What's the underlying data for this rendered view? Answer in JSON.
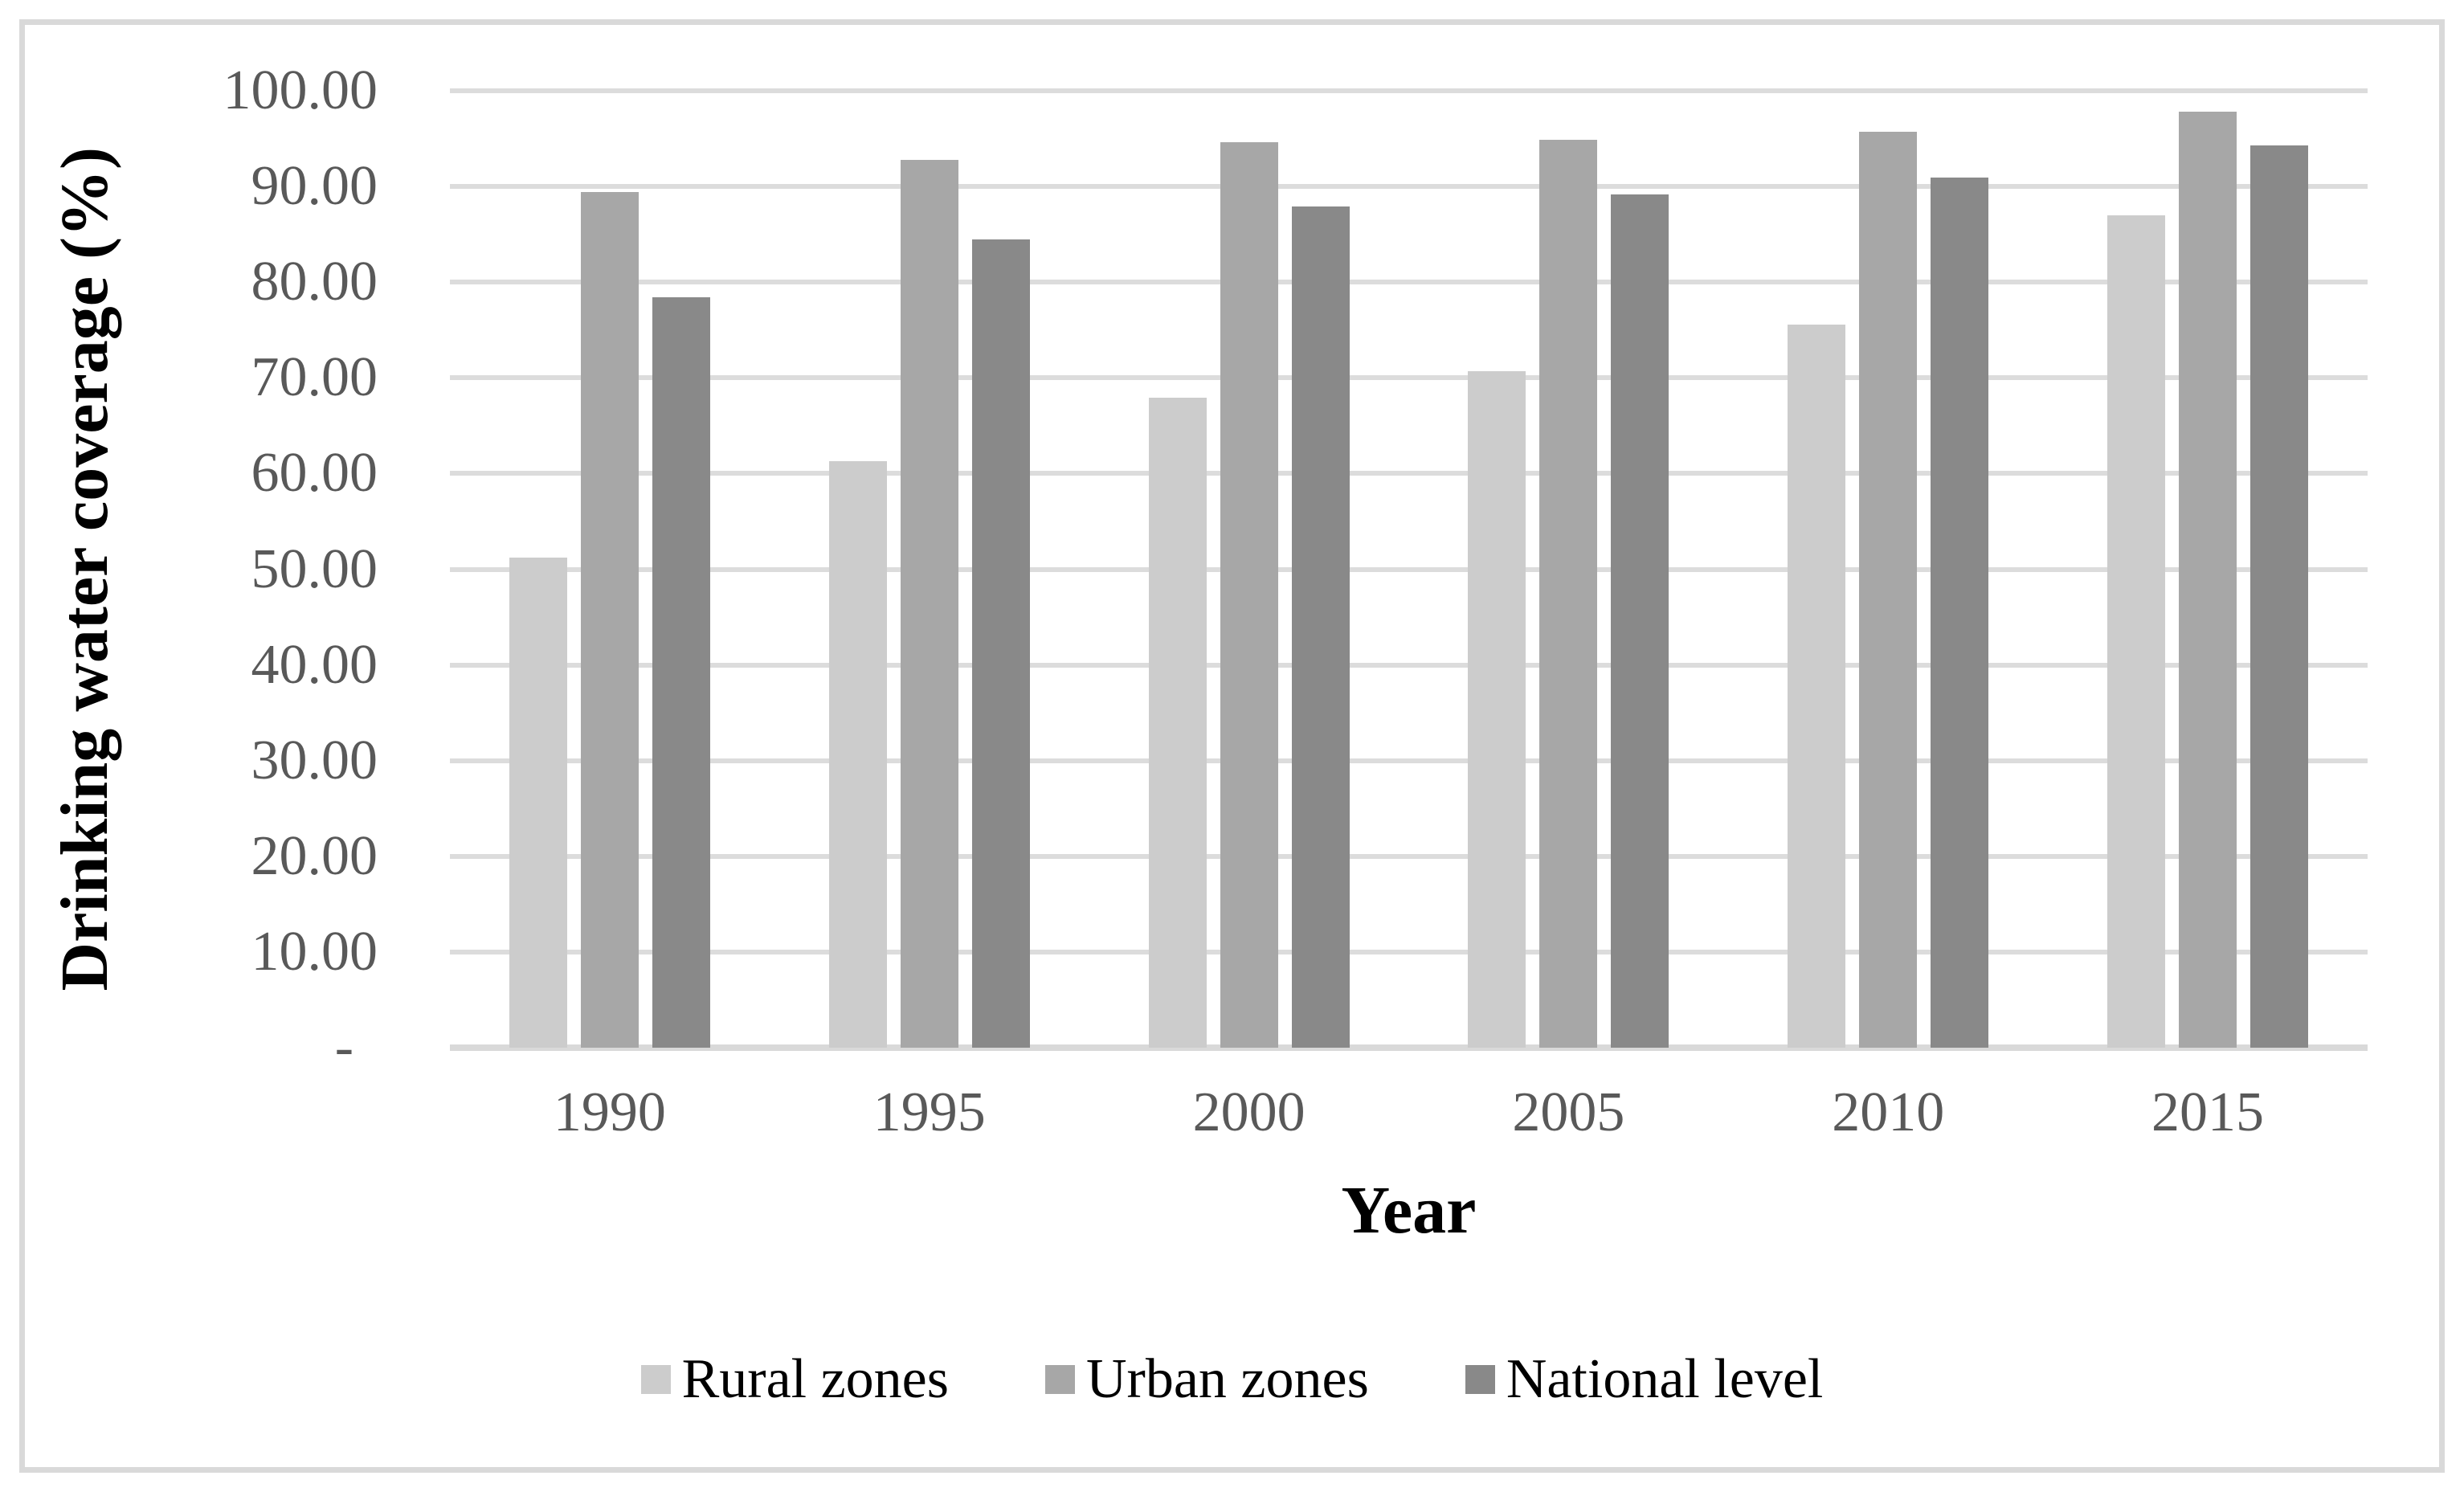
{
  "chart_data": {
    "type": "bar",
    "categories": [
      "1990",
      "1995",
      "2000",
      "2005",
      "2010",
      "2015"
    ],
    "series": [
      {
        "name": "Rural zones",
        "color": "#cccccc",
        "values": [
          51.2,
          61.3,
          67.9,
          70.7,
          75.6,
          87.0
        ]
      },
      {
        "name": "Urban zones",
        "color": "#a7a7a7",
        "values": [
          89.4,
          92.8,
          94.6,
          94.9,
          95.7,
          97.8
        ]
      },
      {
        "name": "National level",
        "color": "#898989",
        "values": [
          78.4,
          84.5,
          87.9,
          89.2,
          90.9,
          94.3
        ]
      }
    ],
    "xlabel": "Year",
    "ylabel": "Drinking water coverage (%)",
    "ylim": [
      0,
      100
    ],
    "ytick_step": 10,
    "ytick_labels": [
      "100.00",
      "90.00",
      "80.00",
      "70.00",
      "60.00",
      "50.00",
      "40.00",
      "30.00",
      "20.00",
      "10.00",
      "-"
    ],
    "grid": true,
    "grid_color": "#dcdcdc",
    "axis_line_color": "#d9d9d9",
    "tick_label_color": "#595959",
    "title_color": "#000000",
    "legend_position": "bottom"
  }
}
